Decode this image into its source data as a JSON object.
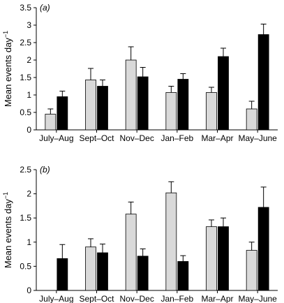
{
  "chart_data": [
    {
      "type": "bar",
      "panel_label": "(a)",
      "categories": [
        "July–Aug",
        "Sept–Oct",
        "Nov–Dec",
        "Jan–Feb",
        "Mar–Apr",
        "May–June"
      ],
      "ylabel_main": "Mean events day",
      "ylabel_sup": "−1",
      "ylim": [
        0,
        3.5
      ],
      "yticks": [
        0,
        0.5,
        1,
        1.5,
        2,
        2.5,
        3,
        3.5
      ],
      "ytick_labels": [
        "0",
        "0.5",
        "1",
        "1.5",
        "2",
        "2.5",
        "3",
        "3.5"
      ],
      "series": [
        {
          "color": "#d9d9d9",
          "values": [
            0.45,
            1.43,
            2.0,
            1.07,
            1.07,
            0.6
          ],
          "errors": [
            0.15,
            0.33,
            0.38,
            0.18,
            0.15,
            0.22
          ]
        },
        {
          "color": "#000000",
          "values": [
            0.95,
            1.25,
            1.52,
            1.45,
            2.1,
            2.73
          ],
          "errors": [
            0.16,
            0.18,
            0.27,
            0.16,
            0.24,
            0.3
          ]
        }
      ]
    },
    {
      "type": "bar",
      "panel_label": "(b)",
      "categories": [
        "July–Aug",
        "Sept–Oct",
        "Nov–Dec",
        "Jan–Feb",
        "Mar–Apr",
        "May–June"
      ],
      "ylabel_main": "Mean events day",
      "ylabel_sup": "−1",
      "ylim": [
        0,
        2.5
      ],
      "yticks": [
        0,
        0.5,
        1,
        1.5,
        2,
        2.5
      ],
      "ytick_labels": [
        "0",
        "0.5",
        "1",
        "1.5",
        "2",
        "2.5"
      ],
      "series": [
        {
          "color": "#d9d9d9",
          "values": [
            0,
            0.9,
            1.58,
            2.02,
            1.32,
            0.83
          ],
          "errors": [
            0,
            0.17,
            0.25,
            0.23,
            0.14,
            0.17
          ]
        },
        {
          "color": "#000000",
          "values": [
            0.66,
            0.78,
            0.71,
            0.6,
            1.32,
            1.72
          ],
          "errors": [
            0.29,
            0.18,
            0.15,
            0.12,
            0.18,
            0.42
          ]
        }
      ]
    }
  ]
}
